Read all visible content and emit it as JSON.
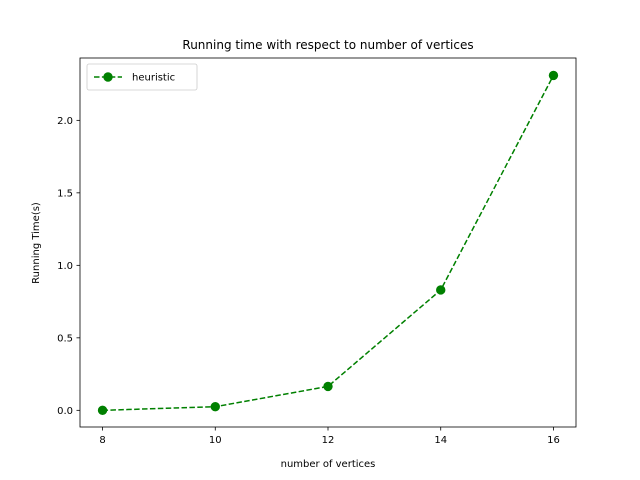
{
  "chart_data": {
    "type": "line",
    "title": "Running time with respect to number of vertices",
    "xlabel": "number of vertices",
    "ylabel": "Running Time(s)",
    "xlim": [
      7.6,
      16.4
    ],
    "ylim": [
      -0.115,
      2.43
    ],
    "xticks": [
      8,
      10,
      12,
      14,
      16
    ],
    "xtick_labels": [
      "8",
      "10",
      "12",
      "14",
      "16"
    ],
    "yticks": [
      0.0,
      0.5,
      1.0,
      1.5,
      2.0
    ],
    "ytick_labels": [
      "0.0",
      "0.5",
      "1.0",
      "1.5",
      "2.0"
    ],
    "grid": false,
    "legend_position": "upper-left",
    "series": [
      {
        "name": "heuristic",
        "color": "#008000",
        "linestyle": "dashed",
        "marker": "circle",
        "x": [
          8,
          10,
          12,
          14,
          16
        ],
        "y": [
          0.0,
          0.025,
          0.165,
          0.83,
          2.31
        ]
      }
    ]
  }
}
